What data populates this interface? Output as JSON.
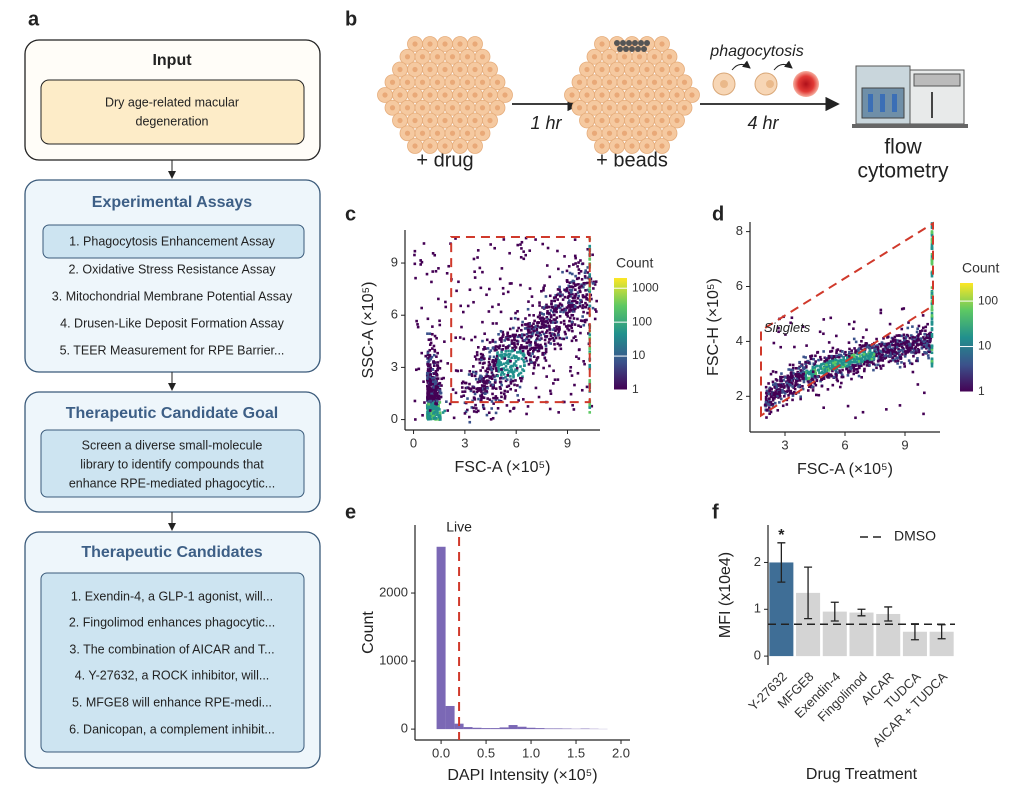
{
  "panel_labels": [
    "a",
    "b",
    "c",
    "d",
    "e",
    "f"
  ],
  "flowchart": {
    "input": {
      "title": "Input",
      "lines": [
        "Dry age-related macular",
        "degeneration"
      ]
    },
    "assays": {
      "title": "Experimental Assays",
      "items": [
        "1. Phagocytosis Enhancement Assay",
        "2. Oxidative Stress Resistance Assay",
        "3. Mitochondrial Membrane Potential Assay",
        "4. Drusen-Like Deposit Formation Assay",
        "5. TEER Measurement for RPE Barrier..."
      ]
    },
    "goal": {
      "title": "Therapeutic Candidate Goal",
      "lines": [
        "Screen a diverse small-molecule",
        "library to identify compounds that",
        "enhance RPE-mediated phagocytic..."
      ]
    },
    "candidates": {
      "title": "Therapeutic Candidates",
      "items": [
        "1. Exendin-4, a GLP-1 agonist, will...",
        "2. Fingolimod enhances phagocytic...",
        "3. The combination of AICAR and T...",
        "4. Y-27632, a ROCK inhibitor, will...",
        "5. MFGE8 will enhance RPE-medi...",
        "6. Danicopan, a complement inhibit..."
      ]
    }
  },
  "schematic": {
    "step1": "+ drug",
    "time1": "1 hr",
    "step2": "+ beads",
    "process": "phagocytosis",
    "time2": "4 hr",
    "end": [
      "flow",
      "cytometry"
    ]
  },
  "chart_data": [
    {
      "type": "density",
      "x_label": "FSC-A (×10⁵)",
      "y_label": "SSC-A (×10⁵)",
      "xlim": [
        -0.5,
        10.9
      ],
      "ylim": [
        -0.6,
        10.9
      ],
      "xticks": [
        0,
        3,
        6,
        9
      ],
      "yticks": [
        0,
        3,
        6,
        9
      ],
      "gate": [
        [
          2.2,
          1.0
        ],
        [
          2.2,
          10.5
        ],
        [
          10.3,
          10.5
        ],
        [
          10.3,
          1.0
        ]
      ],
      "gate_color": "#d0392b",
      "colorbar": {
        "title": "Count",
        "lim": [
          1,
          2000
        ],
        "ticks": [
          1,
          10,
          100,
          1000
        ],
        "log": true
      }
    },
    {
      "type": "density",
      "x_label": "FSC-A (×10⁵)",
      "y_label": "FSC-H (×10⁵)",
      "xlim": [
        1.25,
        10.75
      ],
      "ylim": [
        0.7,
        8.35
      ],
      "xticks": [
        3,
        6,
        9
      ],
      "yticks": [
        2,
        4,
        6,
        8
      ],
      "gate": [
        [
          1.8,
          1.3
        ],
        [
          1.8,
          4.4
        ],
        [
          10.4,
          8.3
        ],
        [
          10.4,
          5.3
        ]
      ],
      "gate_color": "#d0392b",
      "gate_label": "Singlets",
      "colorbar": {
        "title": "Count",
        "lim": [
          1,
          250
        ],
        "ticks": [
          1,
          10,
          100
        ],
        "log": true
      }
    },
    {
      "type": "histogram",
      "x_label": "DAPI Intensity (×10⁵)",
      "y_label": "Count",
      "color": "#7b68b5",
      "bins": [
        -0.05,
        0.05,
        0.15,
        0.25,
        0.35,
        0.45,
        0.55,
        0.65,
        0.75,
        0.85,
        0.95,
        1.05,
        1.15,
        1.25,
        1.35,
        1.45,
        1.55,
        1.65,
        1.75,
        1.85
      ],
      "counts": [
        2680,
        340,
        80,
        30,
        20,
        15,
        15,
        25,
        60,
        35,
        20,
        15,
        10,
        10,
        8,
        5,
        8,
        5,
        3
      ],
      "xlim": [
        -0.29,
        2.1
      ],
      "ylim": [
        -160,
        3000
      ],
      "xticks": [
        {
          "value": 0,
          "label": "0.0"
        },
        {
          "value": 0.5,
          "label": "0.5"
        },
        {
          "value": 1,
          "label": "1.0"
        },
        {
          "value": 1.5,
          "label": "1.5"
        },
        {
          "value": 2,
          "label": "2.0"
        }
      ],
      "yticks": [
        0,
        1000,
        2000
      ],
      "threshold": {
        "label": "Live",
        "value": 0.2,
        "color": "#d0392b"
      }
    },
    {
      "type": "bar",
      "x_label": "Drug Treatment",
      "y_label": "MFI (x10e4)",
      "categories": [
        "Y-27632",
        "MFGE8",
        "Exendin-4",
        "Fingolimod",
        "AICAR",
        "TUDCA",
        "AICAR + TUDCA"
      ],
      "values": [
        2.0,
        1.35,
        0.95,
        0.93,
        0.9,
        0.52,
        0.52
      ],
      "errors": [
        0.42,
        0.55,
        0.2,
        0.07,
        0.15,
        0.17,
        0.15
      ],
      "colors": [
        "#3f6e96",
        "#d4d4d4",
        "#d4d4d4",
        "#d4d4d4",
        "#d4d4d4",
        "#d4d4d4",
        "#d4d4d4"
      ],
      "significance": [
        "*",
        null,
        null,
        null,
        null,
        null,
        null
      ],
      "ylim": [
        -0.19,
        2.8
      ],
      "yticks": [
        0,
        1,
        2
      ],
      "reference": {
        "name": "DMSO",
        "value": 0.68
      },
      "legend": "top-right"
    }
  ]
}
